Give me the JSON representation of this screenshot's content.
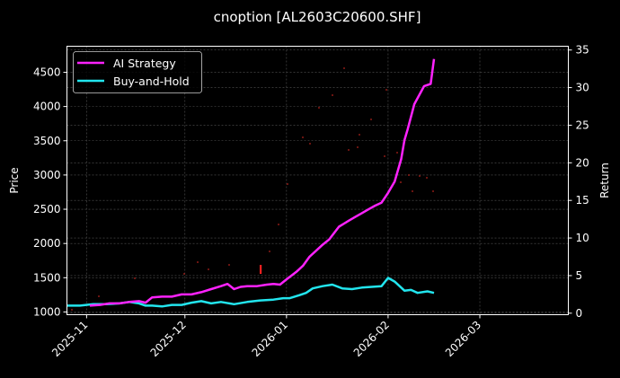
{
  "chart_data": {
    "type": "line",
    "title": "cnoption [AL2603C20600.SHF]",
    "xlabel": "",
    "ylabel": "Price",
    "ylabel_right": "Return",
    "theme": {
      "background": "#000000",
      "foreground": "#ffffff",
      "grid": "#555555"
    },
    "x_ticks": [
      "2025-11",
      "2025-12",
      "2026-01",
      "2026-02",
      "2026-03"
    ],
    "y_ticks_left": [
      1000,
      1500,
      2000,
      2500,
      3000,
      3500,
      4000,
      4500
    ],
    "y_ticks_right": [
      0,
      5,
      10,
      15,
      20,
      25,
      30,
      35
    ],
    "ylim_left": [
      960,
      4880
    ],
    "ylim_right": [
      -0.2,
      35.5
    ],
    "xlim": [
      "2025-10-26",
      "2026-03-28"
    ],
    "grid": true,
    "legend_position": "upper left",
    "legend": [
      "AI Strategy",
      "Buy-and-Hold"
    ],
    "series": [
      {
        "name": "AI Strategy",
        "axis": "right",
        "color": "#ff22ff",
        "x": [
          "2025-11-02",
          "2025-11-05",
          "2025-11-08",
          "2025-11-11",
          "2025-11-14",
          "2025-11-17",
          "2025-11-19",
          "2025-11-21",
          "2025-11-24",
          "2025-11-27",
          "2025-11-30",
          "2025-12-03",
          "2025-12-06",
          "2025-12-09",
          "2025-12-12",
          "2025-12-14",
          "2025-12-16",
          "2025-12-18",
          "2025-12-20",
          "2025-12-23",
          "2025-12-26",
          "2025-12-28",
          "2025-12-30",
          "2026-01-01",
          "2026-01-04",
          "2026-01-06",
          "2026-01-08",
          "2026-01-10",
          "2026-01-12",
          "2026-01-14",
          "2026-01-17",
          "2026-01-20",
          "2026-01-22",
          "2026-01-24",
          "2026-01-26",
          "2026-01-28",
          "2026-01-30",
          "2026-02-01",
          "2026-02-03",
          "2026-02-05",
          "2026-02-06",
          "2026-02-07",
          "2026-02-09",
          "2026-02-12",
          "2026-02-14",
          "2026-02-15"
        ],
        "values": [
          1.0,
          1.1,
          1.3,
          1.3,
          1.5,
          1.6,
          1.4,
          2.1,
          2.2,
          2.2,
          2.5,
          2.5,
          2.8,
          3.2,
          3.6,
          3.9,
          3.2,
          3.5,
          3.6,
          3.6,
          3.8,
          3.9,
          3.8,
          4.5,
          5.5,
          6.3,
          7.5,
          8.3,
          9.1,
          9.8,
          11.5,
          12.3,
          12.8,
          13.3,
          13.8,
          14.3,
          14.7,
          16.0,
          17.5,
          20.5,
          23.0,
          24.5,
          27.8,
          30.2,
          30.5,
          33.8
        ]
      },
      {
        "name": "Buy-and-Hold",
        "axis": "right",
        "color": "#22e5ee",
        "x": [
          "2025-10-26",
          "2025-10-30",
          "2025-11-03",
          "2025-11-07",
          "2025-11-11",
          "2025-11-14",
          "2025-11-17",
          "2025-11-19",
          "2025-11-21",
          "2025-11-24",
          "2025-11-27",
          "2025-11-30",
          "2025-12-03",
          "2025-12-06",
          "2025-12-09",
          "2025-12-12",
          "2025-12-16",
          "2025-12-20",
          "2025-12-24",
          "2025-12-28",
          "2025-12-31",
          "2026-01-02",
          "2026-01-05",
          "2026-01-07",
          "2026-01-09",
          "2026-01-12",
          "2026-01-15",
          "2026-01-18",
          "2026-01-21",
          "2026-01-24",
          "2026-01-27",
          "2026-01-30",
          "2026-02-01",
          "2026-02-03",
          "2026-02-06",
          "2026-02-08",
          "2026-02-10",
          "2026-02-13",
          "2026-02-15"
        ],
        "values": [
          1.0,
          1.0,
          1.2,
          1.2,
          1.3,
          1.5,
          1.3,
          1.0,
          1.0,
          0.9,
          1.1,
          1.1,
          1.4,
          1.6,
          1.3,
          1.5,
          1.2,
          1.5,
          1.7,
          1.8,
          2.0,
          2.0,
          2.4,
          2.7,
          3.3,
          3.6,
          3.8,
          3.3,
          3.2,
          3.4,
          3.5,
          3.6,
          4.7,
          4.2,
          3.0,
          3.1,
          2.7,
          2.9,
          2.7
        ]
      }
    ],
    "annotations": [
      {
        "type": "red-tick",
        "x": "2025-12-27",
        "note": "small red vertical marker above AI Strategy line"
      }
    ]
  }
}
